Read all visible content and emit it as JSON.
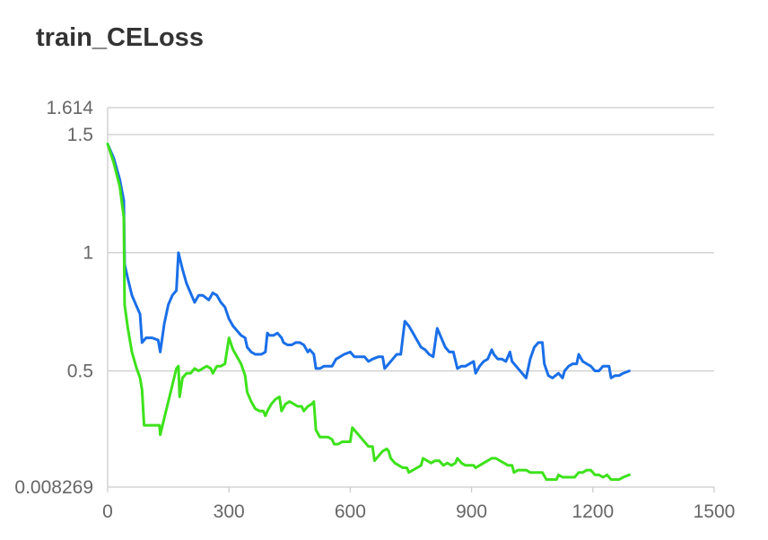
{
  "chart_data": {
    "type": "line",
    "title": "train_CELoss",
    "xlabel": "",
    "ylabel": "",
    "xlim": [
      0,
      1500
    ],
    "ylim": [
      0.008269,
      1.614
    ],
    "x_ticks": [
      "0",
      "300",
      "600",
      "900",
      "1200",
      "1500"
    ],
    "y_ticks": [
      {
        "value": 0.008269,
        "label": "0.008269"
      },
      {
        "value": 0.5,
        "label": "0.5"
      },
      {
        "value": 1,
        "label": "1"
      },
      {
        "value": 1.5,
        "label": "1.5"
      },
      {
        "value": 1.614,
        "label": "1.614"
      }
    ],
    "grid": true,
    "legend": "none",
    "series": [
      {
        "color": "#1a6fe8",
        "points": [
          [
            0,
            1.46
          ],
          [
            15,
            1.4
          ],
          [
            30,
            1.31
          ],
          [
            40,
            1.22
          ],
          [
            42,
            0.95
          ],
          [
            50,
            0.89
          ],
          [
            60,
            0.82
          ],
          [
            70,
            0.78
          ],
          [
            80,
            0.74
          ],
          [
            85,
            0.62
          ],
          [
            95,
            0.64
          ],
          [
            110,
            0.64
          ],
          [
            125,
            0.63
          ],
          [
            130,
            0.58
          ],
          [
            140,
            0.7
          ],
          [
            150,
            0.78
          ],
          [
            160,
            0.82
          ],
          [
            170,
            0.84
          ],
          [
            175,
            1.0
          ],
          [
            185,
            0.93
          ],
          [
            195,
            0.87
          ],
          [
            205,
            0.83
          ],
          [
            215,
            0.79
          ],
          [
            225,
            0.82
          ],
          [
            235,
            0.82
          ],
          [
            250,
            0.8
          ],
          [
            260,
            0.83
          ],
          [
            270,
            0.82
          ],
          [
            280,
            0.79
          ],
          [
            290,
            0.77
          ],
          [
            300,
            0.72
          ],
          [
            310,
            0.69
          ],
          [
            320,
            0.67
          ],
          [
            330,
            0.65
          ],
          [
            340,
            0.64
          ],
          [
            345,
            0.6
          ],
          [
            355,
            0.58
          ],
          [
            365,
            0.57
          ],
          [
            380,
            0.57
          ],
          [
            390,
            0.58
          ],
          [
            395,
            0.66
          ],
          [
            400,
            0.65
          ],
          [
            410,
            0.65
          ],
          [
            420,
            0.66
          ],
          [
            430,
            0.64
          ],
          [
            435,
            0.62
          ],
          [
            445,
            0.61
          ],
          [
            455,
            0.61
          ],
          [
            465,
            0.62
          ],
          [
            475,
            0.62
          ],
          [
            485,
            0.61
          ],
          [
            495,
            0.58
          ],
          [
            500,
            0.59
          ],
          [
            510,
            0.57
          ],
          [
            515,
            0.51
          ],
          [
            525,
            0.51
          ],
          [
            535,
            0.52
          ],
          [
            545,
            0.52
          ],
          [
            555,
            0.52
          ],
          [
            565,
            0.55
          ],
          [
            575,
            0.56
          ],
          [
            585,
            0.57
          ],
          [
            600,
            0.58
          ],
          [
            610,
            0.56
          ],
          [
            625,
            0.56
          ],
          [
            635,
            0.56
          ],
          [
            645,
            0.54
          ],
          [
            655,
            0.55
          ],
          [
            670,
            0.56
          ],
          [
            680,
            0.56
          ],
          [
            685,
            0.51
          ],
          [
            695,
            0.53
          ],
          [
            705,
            0.55
          ],
          [
            715,
            0.57
          ],
          [
            725,
            0.57
          ],
          [
            735,
            0.71
          ],
          [
            745,
            0.69
          ],
          [
            755,
            0.66
          ],
          [
            765,
            0.63
          ],
          [
            775,
            0.6
          ],
          [
            785,
            0.59
          ],
          [
            795,
            0.57
          ],
          [
            805,
            0.56
          ],
          [
            815,
            0.68
          ],
          [
            825,
            0.64
          ],
          [
            835,
            0.6
          ],
          [
            845,
            0.58
          ],
          [
            855,
            0.58
          ],
          [
            865,
            0.51
          ],
          [
            875,
            0.52
          ],
          [
            885,
            0.52
          ],
          [
            895,
            0.53
          ],
          [
            905,
            0.54
          ],
          [
            910,
            0.49
          ],
          [
            920,
            0.52
          ],
          [
            930,
            0.54
          ],
          [
            940,
            0.55
          ],
          [
            950,
            0.59
          ],
          [
            955,
            0.57
          ],
          [
            965,
            0.55
          ],
          [
            975,
            0.55
          ],
          [
            985,
            0.54
          ],
          [
            995,
            0.58
          ],
          [
            1000,
            0.54
          ],
          [
            1010,
            0.52
          ],
          [
            1020,
            0.5
          ],
          [
            1035,
            0.47
          ],
          [
            1045,
            0.55
          ],
          [
            1055,
            0.6
          ],
          [
            1065,
            0.62
          ],
          [
            1075,
            0.62
          ],
          [
            1080,
            0.53
          ],
          [
            1090,
            0.48
          ],
          [
            1100,
            0.47
          ],
          [
            1115,
            0.49
          ],
          [
            1125,
            0.47
          ],
          [
            1130,
            0.5
          ],
          [
            1140,
            0.52
          ],
          [
            1150,
            0.53
          ],
          [
            1160,
            0.53
          ],
          [
            1165,
            0.57
          ],
          [
            1175,
            0.54
          ],
          [
            1185,
            0.53
          ],
          [
            1195,
            0.52
          ],
          [
            1205,
            0.5
          ],
          [
            1215,
            0.5
          ],
          [
            1225,
            0.52
          ],
          [
            1240,
            0.52
          ],
          [
            1245,
            0.47
          ],
          [
            1255,
            0.48
          ],
          [
            1265,
            0.48
          ],
          [
            1275,
            0.49
          ],
          [
            1290,
            0.5
          ]
        ]
      },
      {
        "color": "#3de21b",
        "points": [
          [
            0,
            1.46
          ],
          [
            15,
            1.38
          ],
          [
            30,
            1.28
          ],
          [
            40,
            1.15
          ],
          [
            42,
            0.78
          ],
          [
            50,
            0.68
          ],
          [
            60,
            0.58
          ],
          [
            70,
            0.52
          ],
          [
            80,
            0.47
          ],
          [
            85,
            0.42
          ],
          [
            90,
            0.27
          ],
          [
            100,
            0.27
          ],
          [
            115,
            0.27
          ],
          [
            128,
            0.27
          ],
          [
            130,
            0.23
          ],
          [
            140,
            0.3
          ],
          [
            150,
            0.37
          ],
          [
            160,
            0.44
          ],
          [
            170,
            0.51
          ],
          [
            175,
            0.52
          ],
          [
            178,
            0.39
          ],
          [
            185,
            0.47
          ],
          [
            195,
            0.49
          ],
          [
            205,
            0.49
          ],
          [
            215,
            0.51
          ],
          [
            225,
            0.5
          ],
          [
            235,
            0.51
          ],
          [
            245,
            0.52
          ],
          [
            255,
            0.51
          ],
          [
            260,
            0.49
          ],
          [
            270,
            0.52
          ],
          [
            280,
            0.52
          ],
          [
            290,
            0.53
          ],
          [
            300,
            0.64
          ],
          [
            310,
            0.59
          ],
          [
            320,
            0.56
          ],
          [
            330,
            0.53
          ],
          [
            340,
            0.48
          ],
          [
            345,
            0.41
          ],
          [
            355,
            0.37
          ],
          [
            365,
            0.34
          ],
          [
            375,
            0.33
          ],
          [
            385,
            0.33
          ],
          [
            390,
            0.31
          ],
          [
            395,
            0.33
          ],
          [
            405,
            0.36
          ],
          [
            415,
            0.38
          ],
          [
            425,
            0.39
          ],
          [
            430,
            0.33
          ],
          [
            440,
            0.36
          ],
          [
            450,
            0.37
          ],
          [
            460,
            0.36
          ],
          [
            470,
            0.35
          ],
          [
            480,
            0.35
          ],
          [
            485,
            0.33
          ],
          [
            495,
            0.35
          ],
          [
            505,
            0.36
          ],
          [
            510,
            0.37
          ],
          [
            515,
            0.25
          ],
          [
            525,
            0.22
          ],
          [
            535,
            0.22
          ],
          [
            545,
            0.22
          ],
          [
            555,
            0.21
          ],
          [
            560,
            0.19
          ],
          [
            570,
            0.19
          ],
          [
            580,
            0.2
          ],
          [
            590,
            0.2
          ],
          [
            600,
            0.2
          ],
          [
            605,
            0.26
          ],
          [
            615,
            0.24
          ],
          [
            625,
            0.22
          ],
          [
            635,
            0.2
          ],
          [
            645,
            0.18
          ],
          [
            655,
            0.18
          ],
          [
            660,
            0.12
          ],
          [
            670,
            0.14
          ],
          [
            680,
            0.16
          ],
          [
            690,
            0.17
          ],
          [
            695,
            0.16
          ],
          [
            700,
            0.13
          ],
          [
            710,
            0.11
          ],
          [
            720,
            0.1
          ],
          [
            730,
            0.09
          ],
          [
            740,
            0.09
          ],
          [
            745,
            0.07
          ],
          [
            755,
            0.08
          ],
          [
            765,
            0.09
          ],
          [
            775,
            0.1
          ],
          [
            780,
            0.13
          ],
          [
            790,
            0.12
          ],
          [
            800,
            0.11
          ],
          [
            810,
            0.12
          ],
          [
            820,
            0.12
          ],
          [
            830,
            0.1
          ],
          [
            840,
            0.11
          ],
          [
            850,
            0.1
          ],
          [
            860,
            0.11
          ],
          [
            865,
            0.13
          ],
          [
            875,
            0.11
          ],
          [
            885,
            0.1
          ],
          [
            895,
            0.1
          ],
          [
            905,
            0.1
          ],
          [
            910,
            0.09
          ],
          [
            920,
            0.1
          ],
          [
            930,
            0.11
          ],
          [
            940,
            0.12
          ],
          [
            950,
            0.13
          ],
          [
            960,
            0.13
          ],
          [
            970,
            0.12
          ],
          [
            980,
            0.11
          ],
          [
            990,
            0.1
          ],
          [
            1000,
            0.1
          ],
          [
            1005,
            0.07
          ],
          [
            1015,
            0.08
          ],
          [
            1025,
            0.08
          ],
          [
            1035,
            0.08
          ],
          [
            1045,
            0.07
          ],
          [
            1055,
            0.07
          ],
          [
            1065,
            0.07
          ],
          [
            1075,
            0.07
          ],
          [
            1085,
            0.04
          ],
          [
            1095,
            0.04
          ],
          [
            1110,
            0.04
          ],
          [
            1115,
            0.06
          ],
          [
            1125,
            0.05
          ],
          [
            1135,
            0.05
          ],
          [
            1145,
            0.05
          ],
          [
            1155,
            0.05
          ],
          [
            1165,
            0.07
          ],
          [
            1175,
            0.07
          ],
          [
            1185,
            0.08
          ],
          [
            1195,
            0.08
          ],
          [
            1205,
            0.06
          ],
          [
            1215,
            0.06
          ],
          [
            1225,
            0.05
          ],
          [
            1235,
            0.06
          ],
          [
            1245,
            0.04
          ],
          [
            1255,
            0.04
          ],
          [
            1265,
            0.04
          ],
          [
            1275,
            0.05
          ],
          [
            1290,
            0.06
          ]
        ]
      }
    ]
  }
}
